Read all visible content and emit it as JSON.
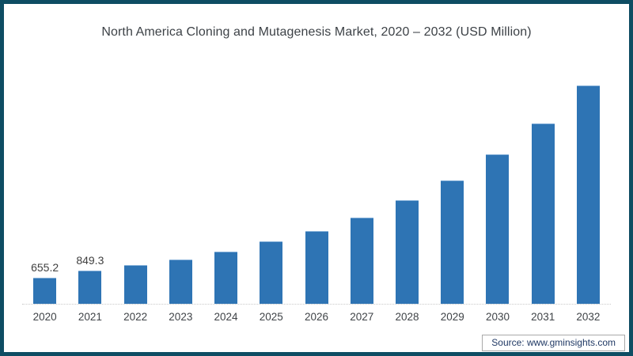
{
  "source": "Source: www.gminsights.com",
  "colors": {
    "bar": "#2e74b4",
    "frame_border": "#0e4d63",
    "title_text": "#3d4247",
    "axis_text": "#3f4347",
    "baseline": "#c9c9c9",
    "source_text": "#1f3864",
    "source_box_border": "#a9a9a9"
  },
  "chart_data": {
    "type": "bar",
    "title": "North America Cloning and Mutagenesis Market, 2020 – 2032 (USD Million)",
    "categories": [
      "2020",
      "2021",
      "2022",
      "2023",
      "2024",
      "2025",
      "2026",
      "2027",
      "2028",
      "2029",
      "2030",
      "2031",
      "2032"
    ],
    "values": [
      655.2,
      849.3,
      990,
      1135,
      1340,
      1605,
      1875,
      2225,
      2680,
      3195,
      3875,
      4675,
      5665
    ],
    "data_labels": [
      "655.2",
      "849.3",
      "",
      "",
      "",
      "",
      "",
      "",
      "",
      "",
      "",
      "",
      ""
    ],
    "xlabel": "",
    "ylabel": "USD Million",
    "ylim": [
      0,
      5900
    ],
    "y_axis_visible": false,
    "grid": false,
    "legend": "none",
    "values_note": "2020 and 2021 values shown as data labels in chart; 2022-2032 estimated from bar heights"
  }
}
